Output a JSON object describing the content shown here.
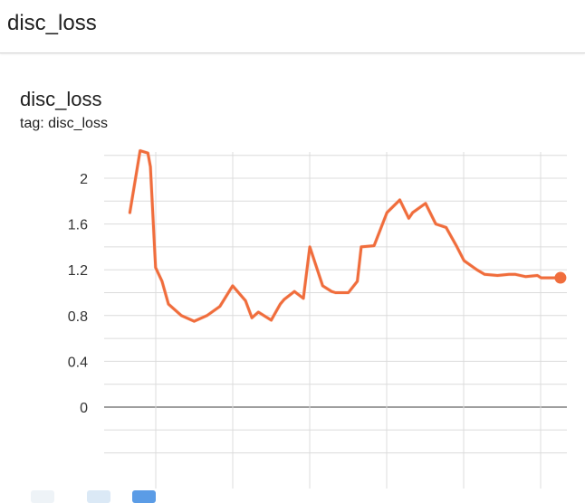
{
  "section": {
    "title": "disc_loss"
  },
  "card": {
    "title": "disc_loss",
    "tag": "tag: disc_loss"
  },
  "colors": {
    "line": "#f06d3c",
    "line_raw": "#f7c9bb",
    "grid": "#dcdcdc",
    "zero": "#9e9e9e"
  },
  "chart_data": {
    "type": "line",
    "title": "disc_loss",
    "xlabel": "",
    "ylabel": "",
    "ylim": [
      -0.4,
      2.2
    ],
    "y_ticks": [
      "0",
      "0.4",
      "0.8",
      "1.2",
      "1.6",
      "2"
    ],
    "grid": true,
    "series": [
      {
        "x": [
          1.0,
          1.4,
          1.7,
          1.8,
          2.0,
          2.25,
          2.5,
          3.0,
          3.5,
          4.0,
          4.5,
          5.0,
          5.5,
          5.75,
          6.0,
          6.5,
          6.85,
          7.0,
          7.4,
          7.75,
          8.0,
          8.5,
          8.85,
          9.0,
          9.5,
          9.85,
          10.0,
          10.5,
          11.0,
          11.5,
          11.85,
          12.0,
          12.5,
          12.9,
          13.3,
          13.7,
          14.0,
          14.5,
          14.8,
          15.3,
          15.75,
          16.0,
          16.4,
          16.85,
          17.0,
          17.5,
          17.75
        ],
        "y": [
          1.7,
          2.24,
          2.22,
          2.1,
          1.22,
          1.1,
          0.9,
          0.8,
          0.75,
          0.8,
          0.88,
          1.06,
          0.93,
          0.78,
          0.83,
          0.76,
          0.9,
          0.94,
          1.01,
          0.95,
          1.4,
          1.06,
          1.01,
          1.0,
          1.0,
          1.1,
          1.4,
          1.41,
          1.7,
          1.81,
          1.65,
          1.7,
          1.78,
          1.6,
          1.57,
          1.41,
          1.28,
          1.2,
          1.16,
          1.15,
          1.16,
          1.16,
          1.14,
          1.15,
          1.13,
          1.13,
          1.13
        ]
      }
    ]
  },
  "axis": {
    "x_min": 0,
    "x_max": 18
  }
}
